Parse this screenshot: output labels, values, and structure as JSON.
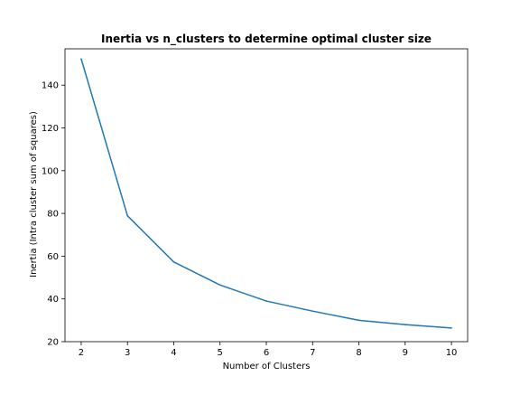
{
  "chart_data": {
    "type": "line",
    "title": "Inertia vs n_clusters to determine optimal cluster size",
    "xlabel": "Number of Clusters",
    "ylabel": "Inertia (Intra cluster sum of squares)",
    "x": [
      2,
      3,
      4,
      5,
      6,
      7,
      8,
      9,
      10
    ],
    "series": [
      {
        "values": [
          152.3,
          78.9,
          57.3,
          46.5,
          39.0,
          34.3,
          30.0,
          28.0,
          26.4
        ]
      }
    ],
    "xlim": [
      1.65,
      10.35
    ],
    "ylim": [
      20,
      157
    ],
    "xticks": [
      2,
      3,
      4,
      5,
      6,
      7,
      8,
      9,
      10
    ],
    "yticks": [
      20,
      40,
      60,
      80,
      100,
      120,
      140
    ],
    "grid": false,
    "line_color": "#1f77b4"
  }
}
